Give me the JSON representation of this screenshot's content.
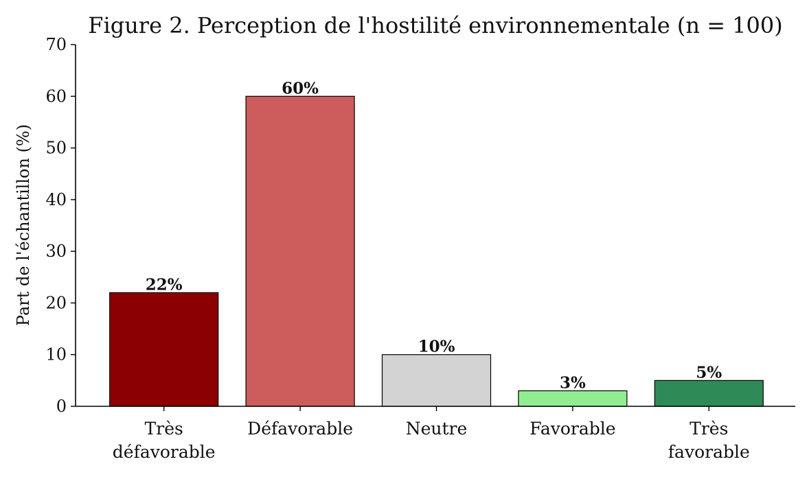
{
  "chart_data": {
    "type": "bar",
    "title": "Figure 2. Perception de l'hostilité environnementale (n = 100)",
    "xlabel": "",
    "ylabel": "Part de l'échantillon (%)",
    "ylim": [
      0,
      70
    ],
    "yticks": [
      0,
      10,
      20,
      30,
      40,
      50,
      60,
      70
    ],
    "grid": false,
    "categories": [
      [
        "Très",
        "défavorable"
      ],
      [
        "Défavorable"
      ],
      [
        "Neutre"
      ],
      [
        "Favorable"
      ],
      [
        "Très",
        "favorable"
      ]
    ],
    "values": [
      22,
      60,
      10,
      3,
      5
    ],
    "data_labels": [
      "22%",
      "60%",
      "10%",
      "3%",
      "5%"
    ],
    "colors": [
      "#8b0000",
      "#cd5c5c",
      "#d3d3d3",
      "#90ee90",
      "#2e8b57"
    ]
  }
}
